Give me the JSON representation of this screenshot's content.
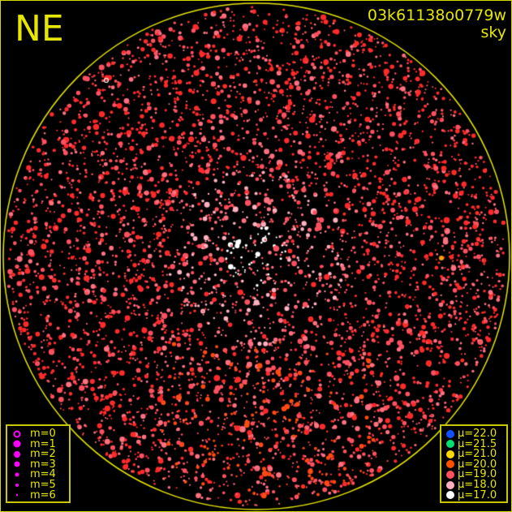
{
  "header": {
    "direction": "NE",
    "observation_id": "03k61138o0779w",
    "image_type": "sky"
  },
  "chart_data": {
    "type": "scatter",
    "title": "",
    "field_shape": "circle",
    "axis_color": "#e6e600",
    "magnitude_legend": {
      "color": "#ff00ff",
      "entries": [
        {
          "label": "m=0",
          "style": "open"
        },
        {
          "label": "m=1",
          "style": "filled"
        },
        {
          "label": "m=2",
          "style": "filled"
        },
        {
          "label": "m=3",
          "style": "filled"
        },
        {
          "label": "m=4",
          "style": "filled"
        },
        {
          "label": "m=5",
          "style": "filled"
        },
        {
          "label": "m=6",
          "style": "filled"
        }
      ]
    },
    "surface_brightness_legend": {
      "entries": [
        {
          "label": "μ=22.0",
          "color": "#1050ff"
        },
        {
          "label": "μ=21.5",
          "color": "#00e070"
        },
        {
          "label": "μ=21.0",
          "color": "#ffd800"
        },
        {
          "label": "μ=20.0",
          "color": "#ff5000"
        },
        {
          "label": "μ=19.0",
          "color": "#ff5060"
        },
        {
          "label": "μ=18.0",
          "color": "#ffb0c0"
        },
        {
          "label": "μ=17.0",
          "color": "#ffffff"
        }
      ]
    }
  }
}
